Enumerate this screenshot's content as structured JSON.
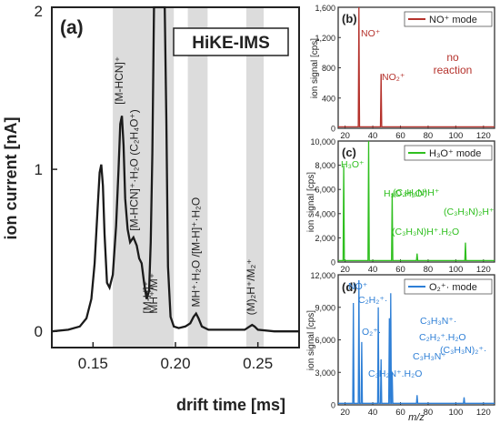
{
  "chart_data": [
    {
      "panel": "(a)",
      "type": "line",
      "title": "HiKE-IMS",
      "xlabel": "drift time [ms]",
      "ylabel": "ion current [nA]",
      "xlim": [
        0.125,
        0.275
      ],
      "ylim": [
        -0.1,
        2.0
      ],
      "xticks": [
        "0.15",
        "0.20",
        "0.25"
      ],
      "xtick_values": [
        0.15,
        0.2,
        0.25
      ],
      "yticks": [
        "0",
        "1",
        "2"
      ],
      "ytick_values": [
        0,
        1,
        2
      ],
      "grid": false,
      "line_color": "#1a1a1a",
      "shade_color": "#dcdcdc",
      "shaded_regions": [
        [
          0.162,
          0.199
        ],
        [
          0.2075,
          0.2195
        ],
        [
          0.243,
          0.2535
        ]
      ],
      "series": [
        {
          "x": [
            0.125,
            0.135,
            0.142,
            0.146,
            0.149,
            0.151,
            0.153,
            0.154,
            0.155,
            0.156,
            0.157,
            0.1585,
            0.16,
            0.162,
            0.164,
            0.1655,
            0.1665,
            0.1675,
            0.1685,
            0.1695,
            0.171,
            0.1725,
            0.1745,
            0.1765,
            0.178,
            0.1795,
            0.181,
            0.1825,
            0.184,
            0.185,
            0.186,
            0.187,
            0.188,
            0.189,
            0.1905,
            0.1915,
            0.1925,
            0.1935,
            0.1945,
            0.1955,
            0.197,
            0.199,
            0.202,
            0.206,
            0.209,
            0.211,
            0.2125,
            0.214,
            0.216,
            0.22,
            0.232,
            0.242,
            0.245,
            0.2465,
            0.248,
            0.25,
            0.26,
            0.275
          ],
          "y": [
            0.0,
            0.01,
            0.03,
            0.08,
            0.2,
            0.42,
            0.8,
            0.98,
            1.03,
            0.9,
            0.6,
            0.3,
            0.27,
            0.35,
            0.65,
            1.0,
            1.28,
            1.33,
            1.15,
            0.82,
            0.63,
            0.55,
            0.58,
            0.53,
            0.45,
            0.42,
            0.3,
            0.2,
            0.25,
            0.55,
            1.1,
            2.1,
            2.3,
            2.3,
            2.1,
            2.2,
            2.3,
            2.3,
            1.3,
            0.4,
            0.09,
            0.03,
            0.02,
            0.03,
            0.05,
            0.09,
            0.11,
            0.08,
            0.03,
            0.01,
            0.01,
            0.01,
            0.03,
            0.04,
            0.03,
            0.01,
            0.0,
            0.0
          ]
        }
      ],
      "annotations": [
        {
          "text": "[M-HCN]⁺",
          "x": 0.168,
          "y": 1.4
        },
        {
          "text": "[M-HCN]⁺·H₂O (C₂H₄O⁺)",
          "x": 0.177,
          "y": 0.62
        },
        {
          "text": "[M-H]⁺",
          "x": 0.185,
          "y": 0.11
        },
        {
          "text": "MH⁺/M⁺",
          "x": 0.189,
          "y": 0.11
        },
        {
          "text": "MH⁺·H₂O /[M-H]⁺·H₂O",
          "x": 0.2145,
          "y": 0.15
        },
        {
          "text": "(M)₂H⁺/M₂⁺",
          "x": 0.248,
          "y": 0.1
        }
      ]
    },
    {
      "panel": "(b)",
      "type": "line",
      "legend": "NO⁺ mode",
      "color": "#b5322c",
      "ylabel": "ion signal [cps]",
      "xlim": [
        15,
        128
      ],
      "ylim": [
        0,
        1600
      ],
      "xticks": [
        "20",
        "40",
        "60",
        "80",
        "100",
        "120"
      ],
      "yticks": [
        "0",
        "400",
        "800",
        "1,200",
        "1,600"
      ],
      "peaks": [
        {
          "x": 30,
          "y": 1600,
          "label": "NO⁺"
        },
        {
          "x": 46,
          "y": 720,
          "label": "NO₂⁺"
        }
      ],
      "annotation": "no reaction"
    },
    {
      "panel": "(c)",
      "type": "line",
      "legend": "H₃O⁺ mode",
      "color": "#2fbf1f",
      "ylabel": "ion signal [cps]",
      "xlim": [
        15,
        128
      ],
      "ylim": [
        0,
        10000
      ],
      "xticks": [
        "20",
        "40",
        "60",
        "80",
        "100",
        "120"
      ],
      "yticks": [
        "0",
        "2,000",
        "4,000",
        "6,000",
        "8,000",
        "10,000"
      ],
      "peaks": [
        {
          "x": 19,
          "y": 8000,
          "label": "H₃O⁺"
        },
        {
          "x": 37,
          "y": 10000,
          "label": "H₃O.H₂O⁺"
        },
        {
          "x": 54,
          "y": 5700,
          "label": "(C₃H₃N)H⁺"
        },
        {
          "x": 72,
          "y": 700,
          "label": "(C₃H₃N)H⁺.H₂O"
        },
        {
          "x": 107,
          "y": 1600,
          "label": "(C₃H₃N)₂H⁺"
        }
      ]
    },
    {
      "panel": "(d)",
      "type": "line",
      "legend": "O₂⁺· mode",
      "color": "#2e7fd6",
      "ylabel": "ion signal [cps]",
      "xlabel": "m/z",
      "xlim": [
        15,
        128
      ],
      "ylim": [
        0,
        12000
      ],
      "xticks": [
        "20",
        "40",
        "60",
        "80",
        "100",
        "120"
      ],
      "yticks": [
        "0",
        "3,000",
        "6,000",
        "9,000",
        "12,000"
      ],
      "peaks": [
        {
          "x": 26,
          "y": 9400,
          "label": "C₂H₂⁺·"
        },
        {
          "x": 30,
          "y": 11500,
          "label": "NO⁺"
        },
        {
          "x": 32,
          "y": 5800,
          "label": "O₂⁺·"
        },
        {
          "x": 44,
          "y": 9000,
          "label": ""
        },
        {
          "x": 46,
          "y": 4200,
          "label": ""
        },
        {
          "x": 52,
          "y": 8000,
          "label": "C₂H₂⁺.H₂O"
        },
        {
          "x": 53,
          "y": 10300,
          "label": "C₃H₃N⁺·"
        },
        {
          "x": 54,
          "y": 3000,
          "label": "C₃H₃N⁺"
        },
        {
          "x": 72,
          "y": 900,
          "label": "C₃H₂N⁺.H₂O"
        },
        {
          "x": 106,
          "y": 700,
          "label": "(C₃H₃N)₂⁺·"
        }
      ]
    }
  ]
}
